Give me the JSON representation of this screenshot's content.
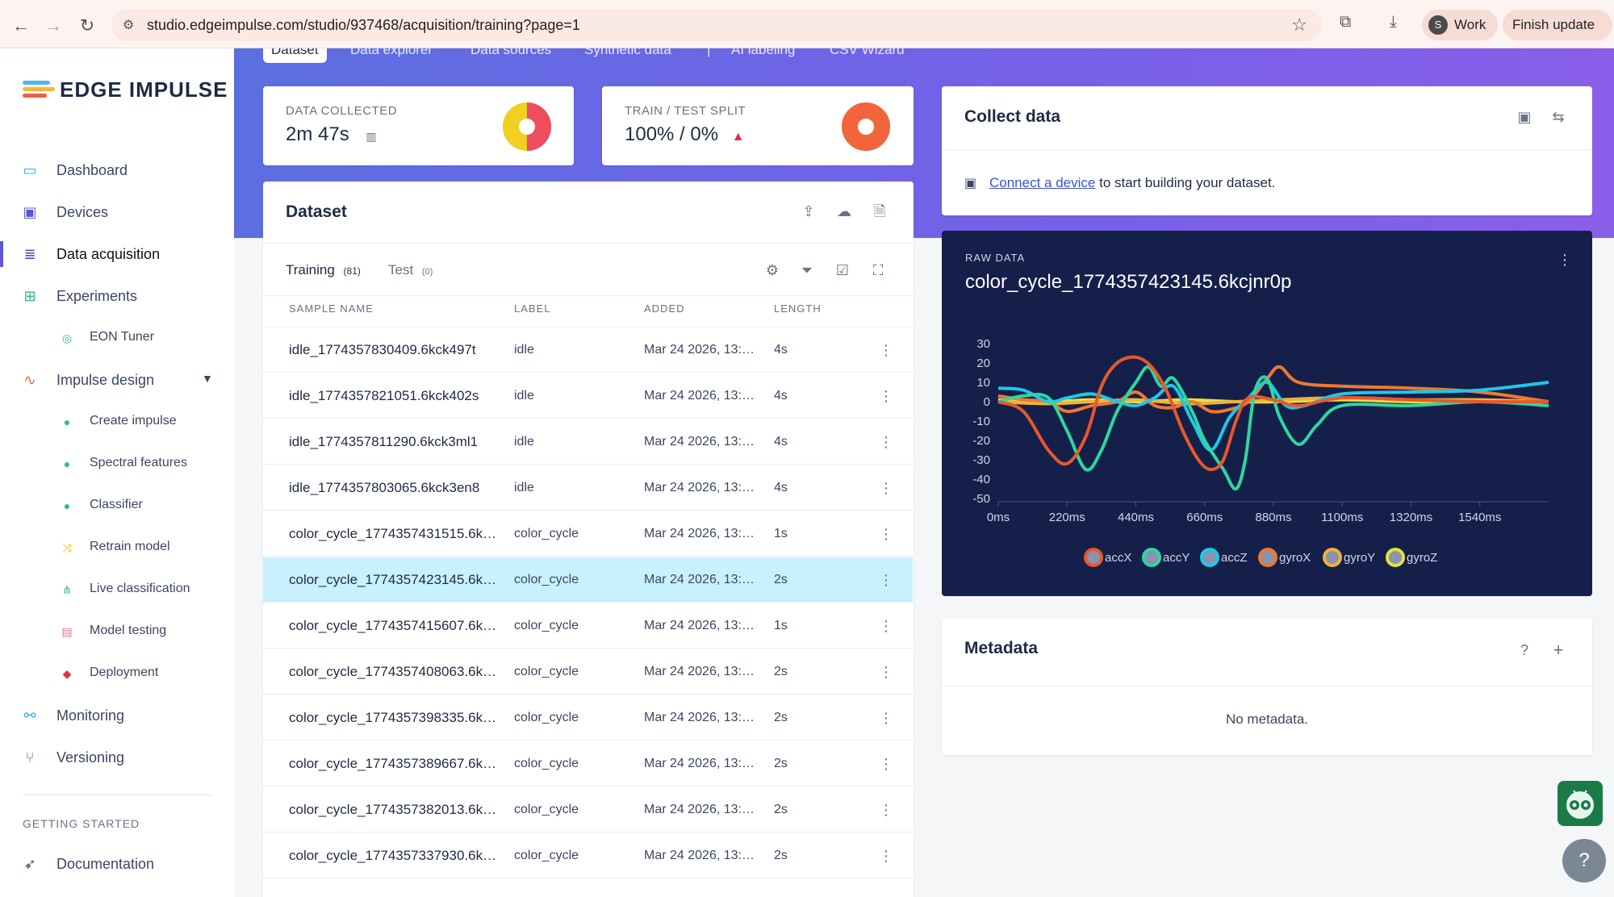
{
  "browser": {
    "url": "studio.edgeimpulse.com/studio/937468/acquisition/training?page=1",
    "profile_initial": "S",
    "profile_label": "Work",
    "finish_update": "Finish update"
  },
  "sidebar": {
    "logo_text": "EDGE IMPULSE",
    "items": [
      {
        "label": "Dashboard",
        "icon": "monitor-icon"
      },
      {
        "label": "Devices",
        "icon": "chip-icon"
      },
      {
        "label": "Data acquisition",
        "icon": "database-icon"
      },
      {
        "label": "Experiments",
        "icon": "grid-icon"
      },
      {
        "label": "EON Tuner",
        "icon": "compass-icon"
      },
      {
        "label": "Impulse design",
        "icon": "pulse-icon"
      },
      {
        "label": "Create impulse",
        "icon": "dot-icon"
      },
      {
        "label": "Spectral features",
        "icon": "dot-icon"
      },
      {
        "label": "Classifier",
        "icon": "dot-icon"
      },
      {
        "label": "Retrain model",
        "icon": "shuffle-icon"
      },
      {
        "label": "Live classification",
        "icon": "network-icon"
      },
      {
        "label": "Model testing",
        "icon": "clipboard-icon"
      },
      {
        "label": "Deployment",
        "icon": "cube-icon"
      },
      {
        "label": "Monitoring",
        "icon": "binoculars-icon"
      },
      {
        "label": "Versioning",
        "icon": "branch-icon"
      }
    ],
    "section_heading": "GETTING STARTED",
    "documentation": "Documentation"
  },
  "tabs": [
    "Dataset",
    "Data explorer",
    "Data sources",
    "Synthetic data",
    "|",
    "AI labeling",
    "CSV Wizard"
  ],
  "stats": {
    "collected_title": "DATA COLLECTED",
    "collected_value": "2m 47s",
    "split_title": "TRAIN / TEST SPLIT",
    "split_value": "100% / 0%",
    "split_train_fraction": 1.0
  },
  "dataset": {
    "title": "Dataset",
    "training_label": "Training",
    "training_count": "(81)",
    "test_label": "Test",
    "test_count": "(0)",
    "columns": [
      "SAMPLE NAME",
      "LABEL",
      "ADDED",
      "LENGTH"
    ],
    "rows": [
      {
        "name": "idle_1774357830409.6kck497t",
        "label": "idle",
        "added": "Mar 24 2026, 13:1...",
        "length": "4s"
      },
      {
        "name": "idle_1774357821051.6kck402s",
        "label": "idle",
        "added": "Mar 24 2026, 13:1...",
        "length": "4s"
      },
      {
        "name": "idle_1774357811290.6kck3ml1",
        "label": "idle",
        "added": "Mar 24 2026, 13:1...",
        "length": "4s"
      },
      {
        "name": "idle_1774357803065.6kck3en8",
        "label": "idle",
        "added": "Mar 24 2026, 13:1...",
        "length": "4s"
      },
      {
        "name": "color_cycle_1774357431515.6kc...",
        "label": "color_cycle",
        "added": "Mar 24 2026, 13:0...",
        "length": "1s"
      },
      {
        "name": "color_cycle_1774357423145.6kc...",
        "label": "color_cycle",
        "added": "Mar 24 2026, 13:0...",
        "length": "2s",
        "selected": true
      },
      {
        "name": "color_cycle_1774357415607.6kc...",
        "label": "color_cycle",
        "added": "Mar 24 2026, 13:0...",
        "length": "1s"
      },
      {
        "name": "color_cycle_1774357408063.6kc...",
        "label": "color_cycle",
        "added": "Mar 24 2026, 13:0...",
        "length": "2s"
      },
      {
        "name": "color_cycle_1774357398335.6kc...",
        "label": "color_cycle",
        "added": "Mar 24 2026, 13:0...",
        "length": "2s"
      },
      {
        "name": "color_cycle_1774357389667.6kc...",
        "label": "color_cycle",
        "added": "Mar 24 2026, 13:0...",
        "length": "2s"
      },
      {
        "name": "color_cycle_1774357382013.6kc...",
        "label": "color_cycle",
        "added": "Mar 24 2026, 13:0...",
        "length": "2s"
      },
      {
        "name": "color_cycle_1774357337930.6kc...",
        "label": "color_cycle",
        "added": "Mar 24 2026, 13:0...",
        "length": "2s"
      }
    ]
  },
  "collect": {
    "title": "Collect data",
    "link_text": "Connect a device",
    "suffix": " to start building your dataset."
  },
  "metadata": {
    "title": "Metadata",
    "empty": "No metadata."
  },
  "raw_data": {
    "kicker": "RAW DATA",
    "title": "color_cycle_1774357423145.6kcjnr0p"
  },
  "chart_data": {
    "type": "line",
    "x_ticks": [
      "0ms",
      "220ms",
      "440ms",
      "660ms",
      "880ms",
      "1100ms",
      "1320ms",
      "1540ms"
    ],
    "y_ticks": [
      "30",
      "20",
      "10",
      "0",
      "-10",
      "-20",
      "-30",
      "-40",
      "-50"
    ],
    "xlim": [
      0,
      1760
    ],
    "ylim": [
      -50,
      30
    ],
    "legend_position": "bottom",
    "series": [
      {
        "name": "accX",
        "color": "#e8582b",
        "x": [
          0,
          80,
          160,
          220,
          280,
          330,
          380,
          440,
          490,
          540,
          590,
          640,
          680,
          720,
          760,
          800,
          880,
          960,
          1100,
          1320,
          1540,
          1760
        ],
        "values": [
          0,
          -5,
          -25,
          -32,
          -18,
          8,
          20,
          23,
          18,
          5,
          -15,
          -30,
          -35,
          -30,
          -10,
          2,
          1,
          -2,
          2,
          1,
          0,
          0
        ]
      },
      {
        "name": "accY",
        "color": "#2fd6a0",
        "x": [
          0,
          80,
          160,
          220,
          280,
          330,
          380,
          440,
          480,
          520,
          560,
          620,
          660,
          720,
          760,
          790,
          820,
          860,
          900,
          960,
          1020,
          1100,
          1320,
          1540,
          1760
        ],
        "values": [
          0,
          3,
          2,
          -15,
          -35,
          -25,
          -5,
          10,
          18,
          8,
          12,
          -5,
          -20,
          -35,
          -45,
          -30,
          5,
          12,
          -8,
          -22,
          -12,
          -2,
          -2,
          0,
          -2
        ]
      },
      {
        "name": "accZ",
        "color": "#1ec8e8",
        "x": [
          0,
          80,
          160,
          220,
          300,
          380,
          440,
          500,
          560,
          620,
          680,
          740,
          800,
          860,
          920,
          980,
          1100,
          1320,
          1540,
          1760
        ],
        "values": [
          7,
          6,
          0,
          2,
          4,
          0,
          -2,
          2,
          8,
          -10,
          -25,
          -8,
          2,
          10,
          -2,
          -2,
          4,
          5,
          6,
          10
        ]
      },
      {
        "name": "gyroX",
        "color": "#f07830",
        "x": [
          0,
          80,
          160,
          220,
          300,
          380,
          440,
          500,
          560,
          620,
          680,
          740,
          800,
          860,
          900,
          960,
          1100,
          1320,
          1540,
          1760
        ],
        "values": [
          3,
          1,
          0,
          -5,
          -2,
          0,
          5,
          -2,
          -3,
          0,
          -5,
          -4,
          0,
          12,
          18,
          10,
          8,
          7,
          5,
          0
        ]
      },
      {
        "name": "gyroY",
        "color": "#f0b040",
        "x": [
          0,
          160,
          300,
          440,
          600,
          760,
          900,
          1100,
          1320,
          1540,
          1760
        ],
        "values": [
          0,
          -1,
          0,
          1,
          -1,
          0,
          1,
          2,
          1,
          1,
          0
        ]
      },
      {
        "name": "gyroZ",
        "color": "#e8e040",
        "x": [
          0,
          160,
          300,
          440,
          600,
          760,
          900,
          1100,
          1320,
          1540,
          1760
        ],
        "values": [
          1,
          0,
          1,
          0,
          1,
          0,
          0,
          1,
          0,
          0,
          0
        ]
      }
    ]
  },
  "colors": {
    "accent": "#5b57d6",
    "hero_start": "#5b6fe0",
    "hero_end": "#8a5fe9",
    "raw_bg": "#15204a",
    "selected_row": "#c7f1fb"
  }
}
